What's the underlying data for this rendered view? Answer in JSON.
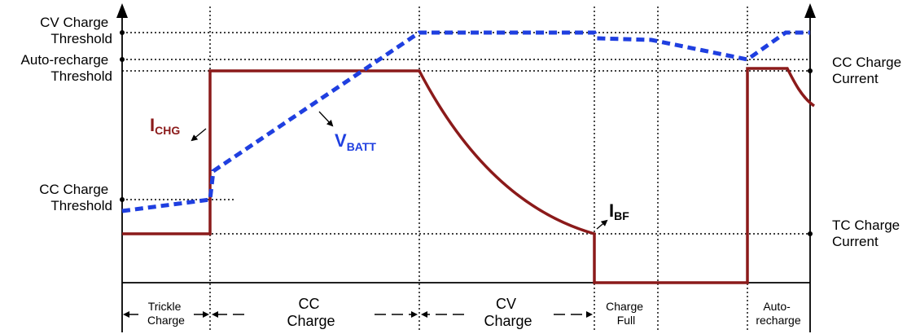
{
  "colors": {
    "current": "#8b1a1a",
    "voltage": "#1f3fe0",
    "grid": "#000000",
    "background": "#ffffff"
  },
  "left_labels": {
    "cv_threshold": [
      "CV Charge",
      "Threshold"
    ],
    "auto_recharge_threshold": [
      "Auto-recharge",
      "Threshold"
    ],
    "cc_threshold": [
      "CC Charge",
      "Threshold"
    ]
  },
  "right_labels": {
    "cc_current": [
      "CC Charge",
      "Current"
    ],
    "tc_current": [
      "TC Charge",
      "Current"
    ]
  },
  "signals": {
    "ichg": {
      "main": "I",
      "sub": "CHG"
    },
    "vbatt": {
      "main": "V",
      "sub": "BATT"
    },
    "ibf": {
      "main": "I",
      "sub": "BF"
    }
  },
  "phases": [
    {
      "id": "trickle",
      "lines": [
        "Trickle",
        "Charge"
      ]
    },
    {
      "id": "cc",
      "lines": [
        "CC",
        "Charge"
      ]
    },
    {
      "id": "cv",
      "lines": [
        "CV",
        "Charge"
      ]
    },
    {
      "id": "full",
      "lines": [
        "Charge",
        "Full"
      ]
    },
    {
      "id": "auto",
      "lines": [
        "Auto-",
        "recharge"
      ]
    }
  ],
  "icons": {
    "arrow_up": "arrow-up-icon",
    "arrow_down_right": "arrow-down-right-icon"
  }
}
